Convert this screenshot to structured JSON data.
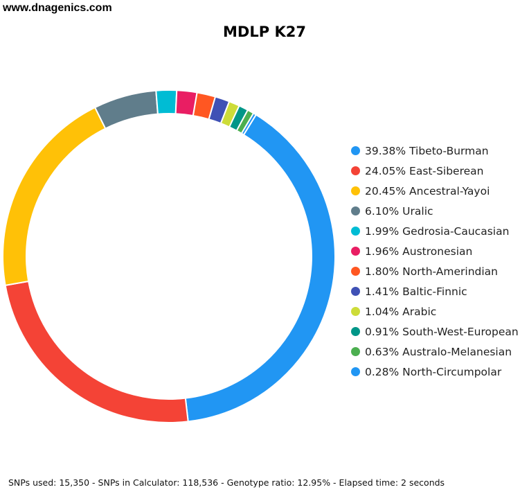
{
  "header": {
    "site": "www.dnagenics.com"
  },
  "chart_data": {
    "type": "pie",
    "title": "MDLP K27",
    "legend_position": "right",
    "labels": [
      "39.38% Tibeto-Burman",
      "24.05% East-Siberean",
      "20.45% Ancestral-Yayoi",
      "6.10% Uralic",
      "1.99% Gedrosia-Caucasian",
      "1.96% Austronesian",
      "1.80% North-Amerindian",
      "1.41% Baltic-Finnic",
      "1.04% Arabic",
      "0.91% South-West-European",
      "0.63% Australo-Melanesian",
      "0.28% North-Circumpolar"
    ],
    "categories": [
      "Tibeto-Burman",
      "East-Siberean",
      "Ancestral-Yayoi",
      "Uralic",
      "Gedrosia-Caucasian",
      "Austronesian",
      "North-Amerindian",
      "Baltic-Finnic",
      "Arabic",
      "South-West-European",
      "Australo-Melanesian",
      "North-Circumpolar"
    ],
    "values": [
      39.38,
      24.05,
      20.45,
      6.1,
      1.99,
      1.96,
      1.8,
      1.41,
      1.04,
      0.91,
      0.63,
      0.28
    ],
    "colors": [
      "#2196F3",
      "#F44336",
      "#FFC107",
      "#607D8B",
      "#00BCD4",
      "#E91E63",
      "#FF5722",
      "#3F51B5",
      "#CDDC39",
      "#009688",
      "#4CAF50",
      "#2196F3"
    ]
  },
  "footer": {
    "stats": "SNPs used: 15,350 - SNPs in Calculator: 118,536 - Genotype ratio: 12.95% - Elapsed time: 2 seconds"
  }
}
